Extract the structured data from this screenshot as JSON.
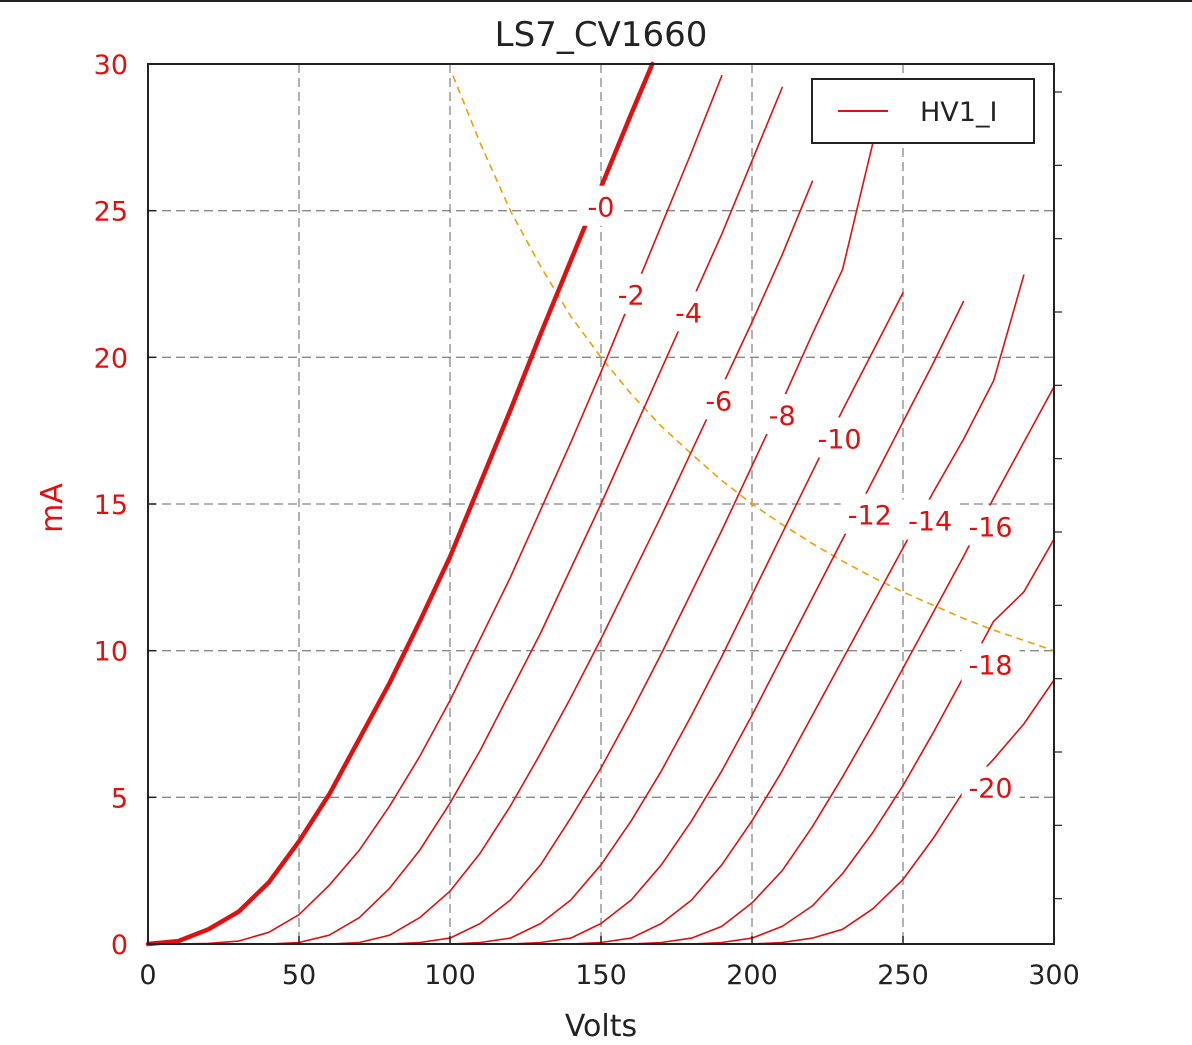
{
  "chart_data": {
    "type": "line",
    "title": "LS7_CV1660",
    "xlabel": "Volts",
    "ylabel": "mA",
    "xlim": [
      0,
      300
    ],
    "ylim": [
      0,
      30
    ],
    "xticks": [
      "0",
      "50",
      "100",
      "150",
      "200",
      "250",
      "300"
    ],
    "yticks": [
      "0",
      "5",
      "10",
      "15",
      "20",
      "25",
      "30"
    ],
    "grid": true,
    "legend": {
      "position": "top-right",
      "entries": [
        "HV1_I"
      ]
    },
    "colors": {
      "curves": "#e01010",
      "load_line": "#f0a000",
      "grid": "#888888",
      "axis_text": "#e01010",
      "title": "#222222"
    },
    "series": [
      {
        "name": "HV1_I",
        "grid_voltage": "-0",
        "label": "-0",
        "label_at": [
          150,
          25.1
        ],
        "x": [
          0,
          10,
          20,
          30,
          40,
          50,
          60,
          70,
          80,
          90,
          100,
          110,
          120,
          130,
          140,
          150,
          160,
          167
        ],
        "y": [
          0,
          0.1,
          0.5,
          1.1,
          2.1,
          3.5,
          5.1,
          7.0,
          8.9,
          11.0,
          13.2,
          15.7,
          18.2,
          20.8,
          23.3,
          25.8,
          28.3,
          30
        ]
      },
      {
        "name": "HV1_I",
        "grid_voltage": "-2",
        "label": "-2",
        "label_at": [
          160,
          22.1
        ],
        "x": [
          10,
          20,
          30,
          40,
          50,
          60,
          70,
          80,
          90,
          100,
          110,
          120,
          130,
          140,
          150,
          160,
          170,
          180,
          190
        ],
        "y": [
          0,
          0.02,
          0.1,
          0.4,
          1.0,
          2.0,
          3.2,
          4.7,
          6.4,
          8.3,
          10.4,
          12.5,
          14.8,
          17.1,
          19.5,
          22.0,
          24.5,
          27.0,
          29.6
        ]
      },
      {
        "name": "HV1_I",
        "grid_voltage": "-4",
        "label": "-4",
        "label_at": [
          179,
          21.5
        ],
        "x": [
          40,
          50,
          60,
          70,
          80,
          90,
          100,
          110,
          120,
          130,
          140,
          150,
          160,
          170,
          180,
          190,
          200,
          210
        ],
        "y": [
          0,
          0.05,
          0.3,
          0.9,
          1.9,
          3.2,
          4.8,
          6.6,
          8.6,
          10.6,
          12.8,
          15.0,
          17.3,
          19.6,
          21.9,
          24.2,
          26.7,
          29.2
        ]
      },
      {
        "name": "HV1_I",
        "grid_voltage": "-6",
        "label": "-6",
        "label_at": [
          189,
          18.5
        ],
        "x": [
          60,
          70,
          80,
          90,
          100,
          110,
          120,
          130,
          140,
          150,
          160,
          170,
          180,
          190,
          200,
          210,
          220
        ],
        "y": [
          0,
          0.05,
          0.3,
          0.9,
          1.8,
          3.1,
          4.7,
          6.5,
          8.4,
          10.4,
          12.5,
          14.6,
          16.8,
          19.0,
          21.2,
          23.5,
          26.0
        ]
      },
      {
        "name": "HV1_I",
        "grid_voltage": "-8",
        "label": "-8",
        "label_at": [
          210,
          18.0
        ],
        "x": [
          80,
          90,
          100,
          110,
          120,
          130,
          140,
          150,
          160,
          170,
          180,
          190,
          200,
          210,
          220,
          230,
          240
        ],
        "y": [
          0,
          0.05,
          0.2,
          0.7,
          1.5,
          2.7,
          4.3,
          6.0,
          7.9,
          9.9,
          12.0,
          14.1,
          16.3,
          18.5,
          20.8,
          23.0,
          27.3
        ]
      },
      {
        "name": "HV1_I",
        "grid_voltage": "-10",
        "label": "-10",
        "label_at": [
          229,
          17.2
        ],
        "x": [
          100,
          110,
          120,
          130,
          140,
          150,
          160,
          170,
          180,
          190,
          200,
          210,
          220,
          230,
          240,
          250
        ],
        "y": [
          0,
          0.05,
          0.2,
          0.7,
          1.5,
          2.7,
          4.2,
          5.9,
          7.8,
          9.8,
          11.9,
          14.0,
          16.1,
          18.2,
          20.2,
          22.2
        ]
      },
      {
        "name": "HV1_I",
        "grid_voltage": "-12",
        "label": "-12",
        "label_at": [
          239,
          14.6
        ],
        "x": [
          120,
          130,
          140,
          150,
          160,
          170,
          180,
          190,
          200,
          210,
          220,
          230,
          240,
          250,
          260,
          270
        ],
        "y": [
          0,
          0.05,
          0.2,
          0.7,
          1.5,
          2.7,
          4.2,
          5.9,
          7.8,
          9.8,
          11.8,
          13.8,
          15.8,
          17.8,
          19.8,
          21.9
        ]
      },
      {
        "name": "HV1_I",
        "grid_voltage": "-14",
        "label": "-14",
        "label_at": [
          259,
          14.4
        ],
        "x": [
          140,
          150,
          160,
          170,
          180,
          190,
          200,
          210,
          220,
          230,
          240,
          250,
          260,
          270,
          280,
          290
        ],
        "y": [
          0,
          0.05,
          0.2,
          0.7,
          1.5,
          2.7,
          4.2,
          5.9,
          7.8,
          9.7,
          11.6,
          13.5,
          15.4,
          17.2,
          19.2,
          22.8
        ]
      },
      {
        "name": "HV1_I",
        "grid_voltage": "-16",
        "label": "-16",
        "label_at": [
          279,
          14.2
        ],
        "x": [
          160,
          170,
          180,
          190,
          200,
          210,
          220,
          230,
          240,
          250,
          260,
          270,
          280,
          290,
          300
        ],
        "y": [
          0,
          0.05,
          0.2,
          0.6,
          1.4,
          2.5,
          4.0,
          5.7,
          7.5,
          9.4,
          11.3,
          13.2,
          15.2,
          17.1,
          19.0
        ]
      },
      {
        "name": "HV1_I",
        "grid_voltage": "-18",
        "label": "-18",
        "label_at": [
          279,
          9.5
        ],
        "x": [
          180,
          190,
          200,
          210,
          220,
          230,
          240,
          250,
          260,
          270,
          280,
          290,
          300
        ],
        "y": [
          0,
          0.05,
          0.2,
          0.6,
          1.3,
          2.4,
          3.8,
          5.4,
          7.2,
          9.1,
          11.0,
          12.0,
          13.8
        ]
      },
      {
        "name": "HV1_I",
        "grid_voltage": "-20",
        "label": "-20",
        "label_at": [
          279,
          5.3
        ],
        "x": [
          200,
          210,
          220,
          230,
          240,
          250,
          260,
          270,
          280,
          290,
          300
        ],
        "y": [
          0,
          0.05,
          0.2,
          0.5,
          1.2,
          2.2,
          3.6,
          5.2,
          6.3,
          7.5,
          9.0
        ]
      }
    ],
    "load_line": {
      "style": "dashed",
      "x": [
        101,
        110,
        120,
        130,
        140,
        150,
        160,
        170,
        180,
        190,
        200,
        210,
        220,
        230,
        240,
        250,
        260,
        270,
        280,
        290,
        300
      ],
      "y": [
        29.6,
        27.3,
        25.0,
        23.1,
        21.4,
        20.0,
        18.75,
        17.65,
        16.7,
        15.8,
        15.0,
        14.3,
        13.65,
        13.05,
        12.5,
        12.0,
        11.55,
        11.1,
        10.7,
        10.35,
        10.0
      ]
    }
  }
}
